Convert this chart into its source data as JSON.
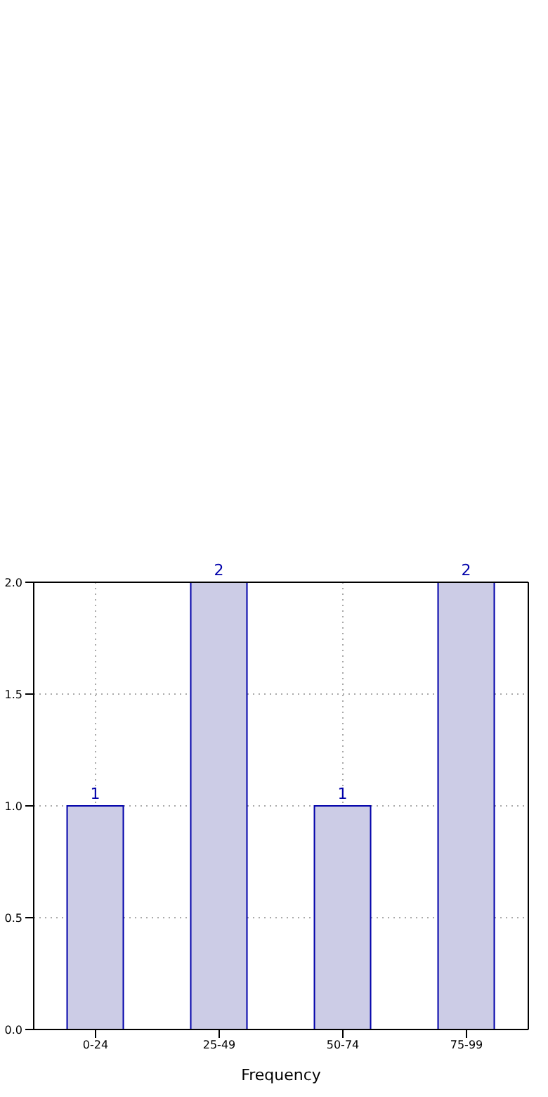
{
  "chart_data": {
    "type": "bar",
    "xlabel": "Frequency",
    "categories": [
      "0-24",
      "25-49",
      "50-74",
      "75-99"
    ],
    "values": [
      1,
      2,
      1,
      2
    ],
    "color": "#cccce6",
    "data_labels": true,
    "grid": true,
    "ylim": [
      0,
      2
    ],
    "yticks": [
      {
        "value": 0,
        "label": "0.0"
      },
      {
        "value": 0.5,
        "label": "0.5"
      },
      {
        "value": 1,
        "label": "1.0"
      },
      {
        "value": 1.5,
        "label": "1.5"
      },
      {
        "value": 2,
        "label": "2.0"
      }
    ]
  }
}
